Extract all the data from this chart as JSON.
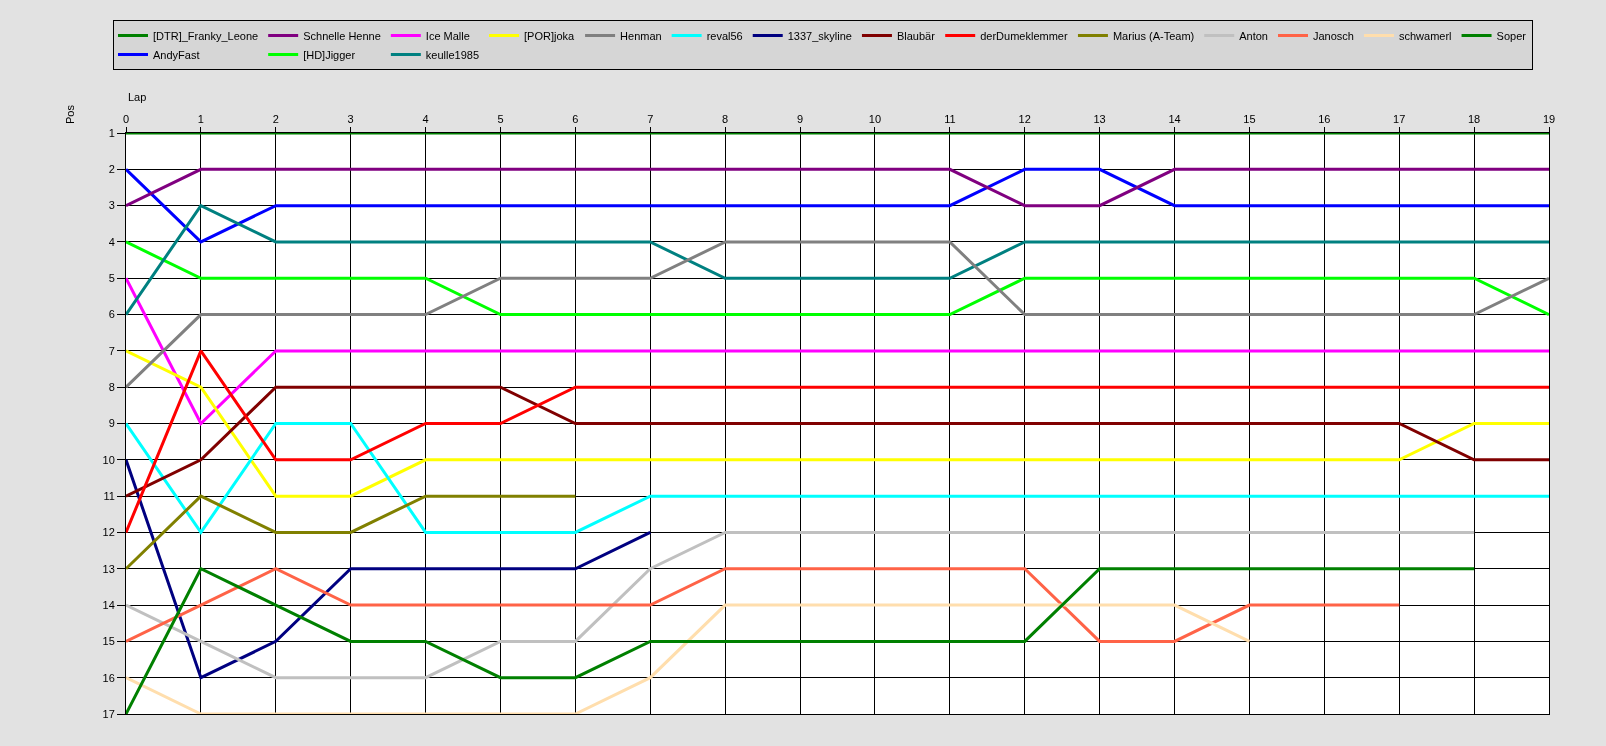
{
  "chart_data": {
    "type": "line",
    "xlabel": "Lap",
    "ylabel": "Pos",
    "x": [
      0,
      1,
      2,
      3,
      4,
      5,
      6,
      7,
      8,
      9,
      10,
      11,
      12,
      13,
      14,
      15,
      16,
      17,
      18,
      19
    ],
    "xlim": [
      0,
      19
    ],
    "xticks": [
      0,
      1,
      2,
      3,
      4,
      5,
      6,
      7,
      8,
      9,
      10,
      11,
      12,
      13,
      14,
      15,
      16,
      17,
      18,
      19
    ],
    "ylim": [
      17,
      1
    ],
    "yticks": [
      1,
      2,
      3,
      4,
      5,
      6,
      7,
      8,
      9,
      10,
      11,
      12,
      13,
      14,
      15,
      16,
      17
    ],
    "grid": true,
    "legend": "top",
    "series": [
      {
        "name": "[DTR]_Franky_Leone",
        "color": "#008000",
        "values": [
          1,
          1,
          1,
          1,
          1,
          1,
          1,
          1,
          1,
          1,
          1,
          1,
          1,
          1,
          1,
          1,
          1,
          1,
          1,
          1
        ]
      },
      {
        "name": "AndyFast",
        "color": "#0000ff",
        "values": [
          2,
          4,
          3,
          3,
          3,
          3,
          3,
          3,
          3,
          3,
          3,
          3,
          2,
          2,
          3,
          3,
          3,
          3,
          3,
          3
        ]
      },
      {
        "name": "Schnelle Henne",
        "color": "#800080",
        "values": [
          3,
          2,
          2,
          2,
          2,
          2,
          2,
          2,
          2,
          2,
          2,
          2,
          3,
          3,
          2,
          2,
          2,
          2,
          2,
          2
        ]
      },
      {
        "name": "[HD]Jigger",
        "color": "#00ff00",
        "values": [
          4,
          5,
          5,
          5,
          5,
          6,
          6,
          6,
          6,
          6,
          6,
          6,
          5,
          5,
          5,
          5,
          5,
          5,
          5,
          6
        ]
      },
      {
        "name": "Ice Malle",
        "color": "#ff00ff",
        "values": [
          5,
          9,
          7,
          7,
          7,
          7,
          7,
          7,
          7,
          7,
          7,
          7,
          7,
          7,
          7,
          7,
          7,
          7,
          7,
          7
        ]
      },
      {
        "name": "keulle1985",
        "color": "#008080",
        "values": [
          6,
          3,
          4,
          4,
          4,
          4,
          4,
          4,
          5,
          5,
          5,
          5,
          4,
          4,
          4,
          4,
          4,
          4,
          4,
          4
        ]
      },
      {
        "name": "[POR]joka",
        "color": "#ffff00",
        "values": [
          7,
          8,
          11,
          11,
          10,
          10,
          10,
          10,
          10,
          10,
          10,
          10,
          10,
          10,
          10,
          10,
          10,
          10,
          9,
          9
        ]
      },
      {
        "name": "Henman",
        "color": "#808080",
        "values": [
          8,
          6,
          6,
          6,
          6,
          5,
          5,
          5,
          4,
          4,
          4,
          4,
          6,
          6,
          6,
          6,
          6,
          6,
          6,
          5
        ]
      },
      {
        "name": "reval56",
        "color": "#00ffff",
        "values": [
          9,
          12,
          9,
          9,
          12,
          12,
          12,
          11,
          11,
          11,
          11,
          11,
          11,
          11,
          11,
          11,
          11,
          11,
          11,
          11
        ]
      },
      {
        "name": "1337_skyline",
        "color": "#000080",
        "values": [
          10,
          16,
          15,
          13,
          13,
          13,
          13,
          12,
          null,
          null,
          null,
          null,
          null,
          null,
          null,
          null,
          null,
          null,
          null,
          null
        ]
      },
      {
        "name": "Blaubär",
        "color": "#800000",
        "values": [
          11,
          10,
          8,
          8,
          8,
          8,
          9,
          9,
          9,
          9,
          9,
          9,
          9,
          9,
          9,
          9,
          9,
          9,
          10,
          10
        ]
      },
      {
        "name": "derDumeklemmer",
        "color": "#ff0000",
        "values": [
          12,
          7,
          10,
          10,
          9,
          9,
          8,
          8,
          8,
          8,
          8,
          8,
          8,
          8,
          8,
          8,
          8,
          8,
          8,
          8
        ]
      },
      {
        "name": "Marius (A-Team)",
        "color": "#808000",
        "values": [
          13,
          11,
          12,
          12,
          11,
          11,
          11,
          null,
          null,
          null,
          null,
          null,
          null,
          null,
          null,
          null,
          null,
          null,
          null,
          null
        ]
      },
      {
        "name": "Anton",
        "color": "#c0c0c0",
        "values": [
          14,
          15,
          16,
          16,
          16,
          15,
          15,
          13,
          12,
          12,
          12,
          12,
          12,
          12,
          12,
          12,
          12,
          12,
          12,
          null
        ]
      },
      {
        "name": "Janosch",
        "color": "#ff6347",
        "values": [
          15,
          14,
          13,
          14,
          14,
          14,
          14,
          14,
          13,
          13,
          13,
          13,
          13,
          15,
          15,
          14,
          14,
          14,
          null,
          null
        ]
      },
      {
        "name": "schwamerl",
        "color": "#ffdead",
        "values": [
          16,
          17,
          17,
          17,
          17,
          17,
          17,
          16,
          14,
          14,
          14,
          14,
          14,
          14,
          14,
          15,
          null,
          null,
          null,
          null
        ]
      },
      {
        "name": "Soper",
        "color": "#008000",
        "values": [
          17,
          13,
          14,
          15,
          15,
          16,
          16,
          15,
          15,
          15,
          15,
          15,
          15,
          13,
          13,
          13,
          13,
          13,
          13,
          null
        ]
      }
    ]
  }
}
